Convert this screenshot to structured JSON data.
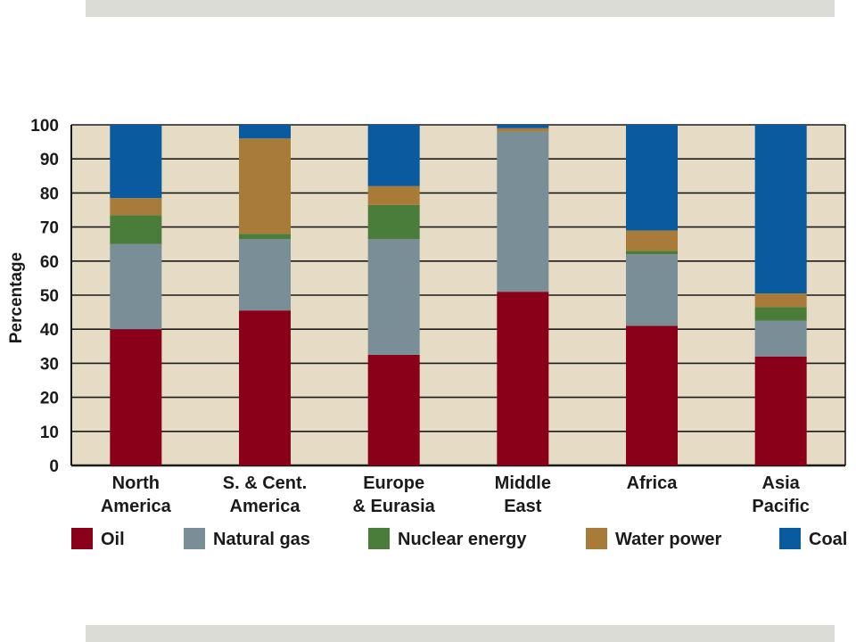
{
  "chart_data": {
    "type": "bar",
    "stacked": true,
    "ylabel": "Percentage",
    "ylim": [
      0,
      100
    ],
    "yticks": [
      "0",
      "10",
      "20",
      "30",
      "40",
      "50",
      "60",
      "70",
      "80",
      "90",
      "100"
    ],
    "grid": true,
    "legend_placement": "bottom",
    "categories": [
      [
        "North",
        "America"
      ],
      [
        "S. & Cent.",
        "America"
      ],
      [
        "Europe",
        "& Eurasia"
      ],
      [
        "Middle",
        "East"
      ],
      [
        "Africa"
      ],
      [
        "Asia",
        "Pacific"
      ]
    ],
    "series": [
      {
        "name": "Oil",
        "color": "#8b0019",
        "values": [
          40,
          45.5,
          32.5,
          51,
          41,
          32
        ]
      },
      {
        "name": "Natural gas",
        "color": "#7a8e98",
        "values": [
          25,
          21,
          34,
          47,
          21,
          10.5
        ]
      },
      {
        "name": "Nuclear energy",
        "color": "#4a7c3a",
        "values": [
          8.5,
          1.5,
          10,
          0,
          1,
          4
        ]
      },
      {
        "name": "Water power",
        "color": "#a87c38",
        "values": [
          5,
          28,
          5.5,
          1,
          6,
          4
        ]
      },
      {
        "name": "Coal",
        "color": "#0a5aa0",
        "values": [
          21.5,
          4,
          18,
          1,
          31,
          49.5
        ]
      }
    ]
  },
  "colors": {
    "plot_background": "#e6dcc5",
    "gridline": "#1a1a1a"
  }
}
